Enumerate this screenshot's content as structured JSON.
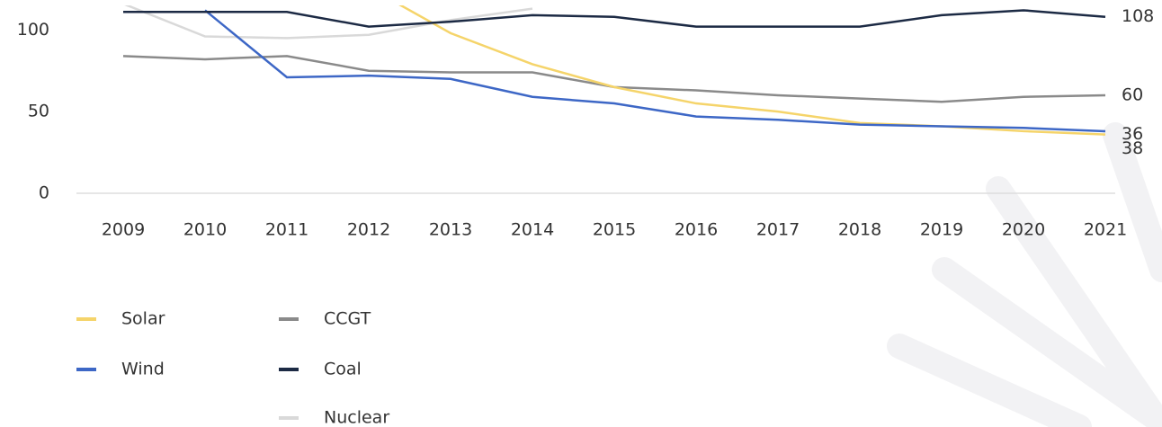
{
  "chart_data": {
    "type": "line",
    "x": [
      "2009",
      "2010",
      "2011",
      "2012",
      "2013",
      "2014",
      "2015",
      "2016",
      "2017",
      "2018",
      "2019",
      "2020",
      "2021"
    ],
    "ylim": [
      0,
      115
    ],
    "yticks": [
      0,
      50,
      100
    ],
    "series": [
      {
        "name": "Solar",
        "color": "#f5d46a",
        "values": [
          null,
          null,
          null,
          126,
          98,
          79,
          65,
          55,
          50,
          43,
          41,
          38,
          36
        ]
      },
      {
        "name": "Wind",
        "color": "#3d67c6",
        "values": [
          null,
          112,
          71,
          72,
          70,
          59,
          55,
          47,
          45,
          42,
          41,
          40,
          38
        ]
      },
      {
        "name": "CCGT",
        "color": "#8a8a8a",
        "values": [
          84,
          82,
          84,
          75,
          74,
          74,
          65,
          63,
          60,
          58,
          56,
          59,
          60
        ]
      },
      {
        "name": "Coal",
        "color": "#1c2a44",
        "values": [
          111,
          111,
          111,
          102,
          105,
          109,
          108,
          102,
          102,
          102,
          109,
          112,
          108
        ]
      },
      {
        "name": "Nuclear",
        "color": "#d9d9d9",
        "values": [
          116,
          96,
          95,
          97,
          106,
          113,
          null,
          null,
          null,
          null,
          null,
          null,
          null
        ]
      }
    ]
  }
}
